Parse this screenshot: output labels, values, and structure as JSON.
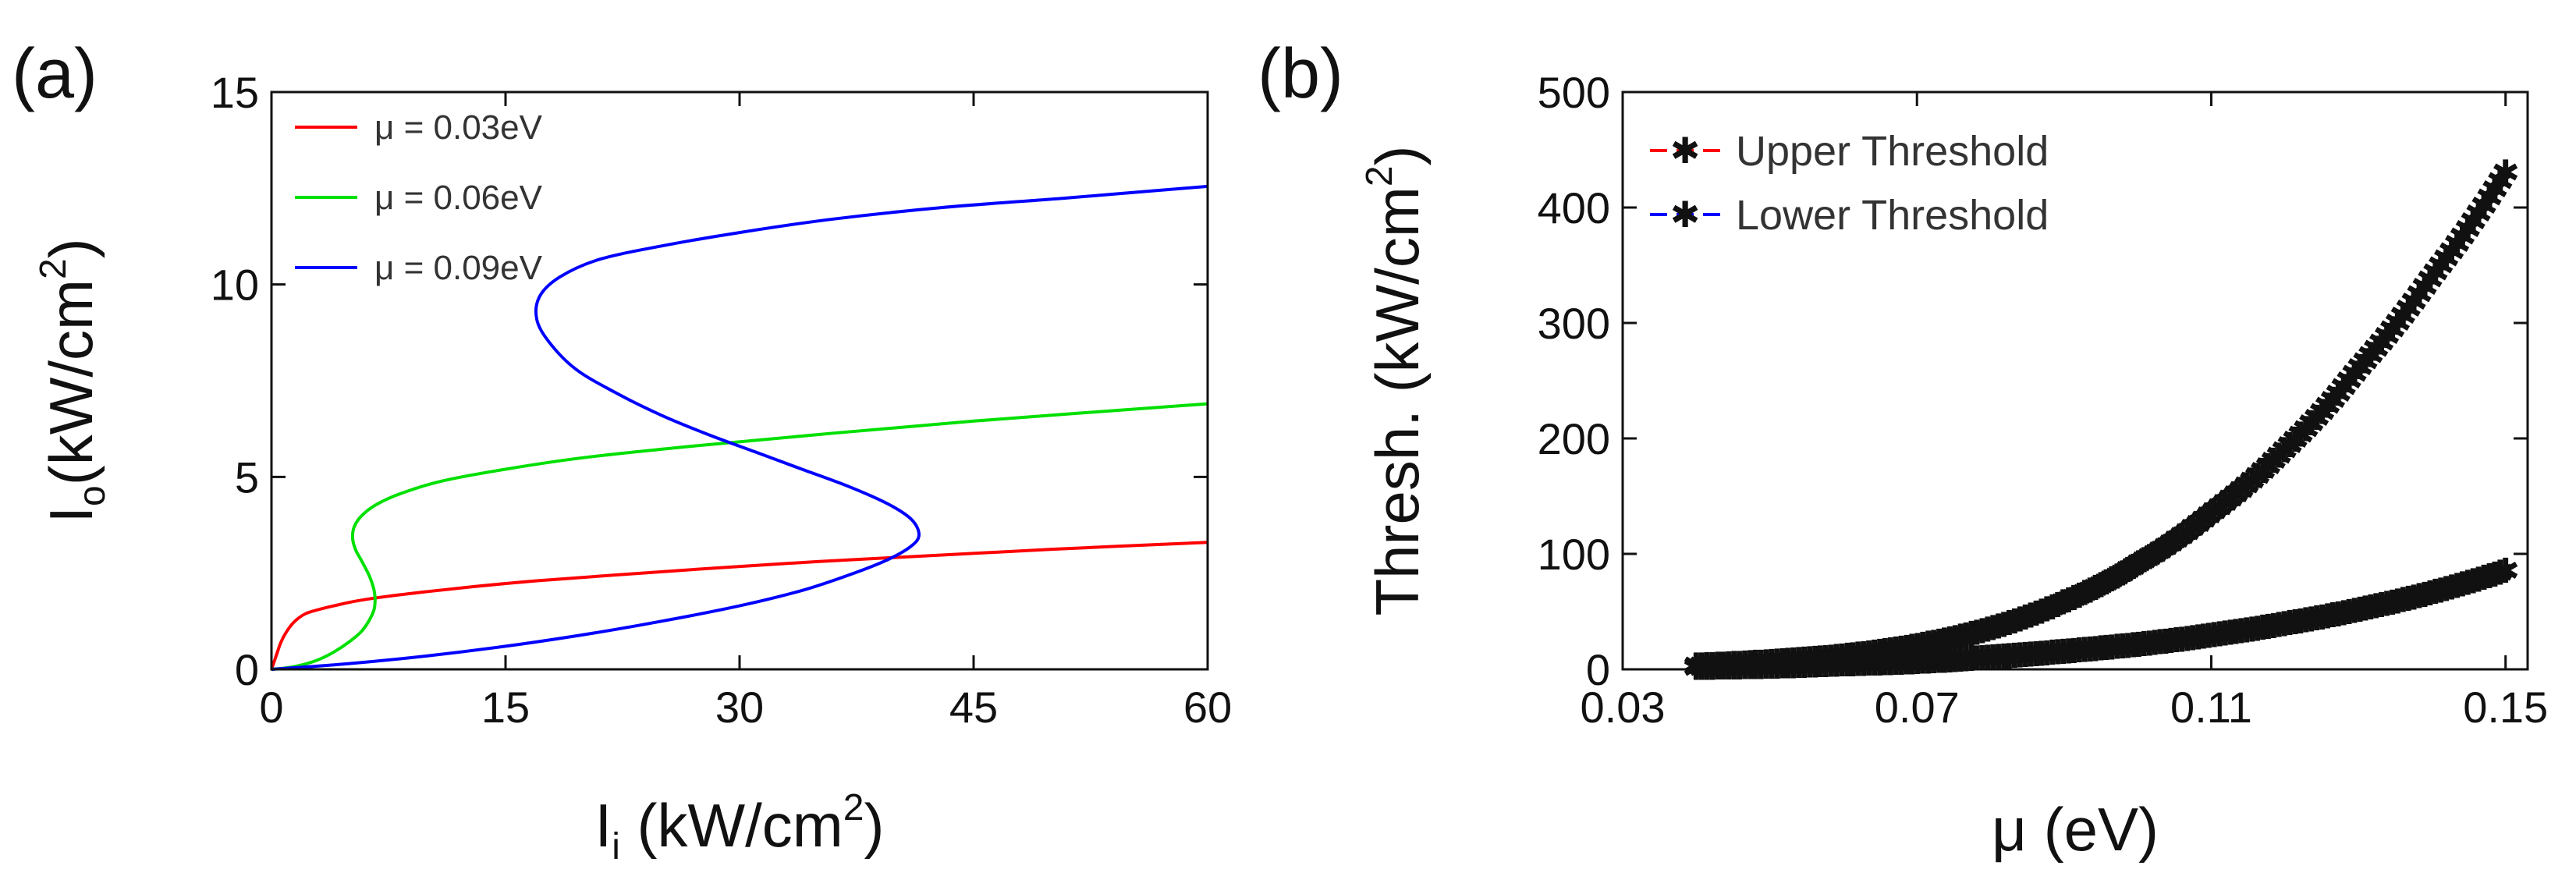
{
  "panels": [
    {
      "label": "(a)",
      "chart_data": {
        "type": "line",
        "title": "",
        "xlabel": {
          "main": "I",
          "sub": "i",
          "rest": " (kW/cm",
          "sup": "2",
          "close": ")"
        },
        "ylabel": {
          "main": "I",
          "sub": "o",
          "rest": "(kW/cm",
          "sup": "2",
          "close": ")"
        },
        "xlim": [
          0,
          60
        ],
        "ylim": [
          0,
          15
        ],
        "xticks": [
          "0",
          "15",
          "30",
          "45",
          "60"
        ],
        "yticks": [
          "0",
          "5",
          "10",
          "15"
        ],
        "grid": false,
        "legend_position": "top-left",
        "series": [
          {
            "name": "μ = 0.03eV",
            "color": "#ff0000",
            "x": [
              0.0,
              0.3,
              0.6,
              1.0,
              1.5,
              2.2,
              3.0,
              4.0,
              5.5,
              7.5,
              10,
              13,
              17,
              22,
              28,
              35,
              42,
              50,
              60
            ],
            "y": [
              0.0,
              0.35,
              0.7,
              1.0,
              1.25,
              1.45,
              1.55,
              1.65,
              1.78,
              1.9,
              2.02,
              2.15,
              2.3,
              2.45,
              2.62,
              2.8,
              2.95,
              3.12,
              3.3
            ]
          },
          {
            "name": "μ = 0.06eV",
            "color": "#00e000",
            "x": [
              0.0,
              1.0,
              2.0,
              3.0,
              4.0,
              5.0,
              5.8,
              6.3,
              6.6,
              6.6,
              6.3,
              5.8,
              5.4,
              5.2,
              5.3,
              5.8,
              6.8,
              8.5,
              11,
              15,
              20,
              27,
              35,
              45,
              60
            ],
            "y": [
              0.0,
              0.04,
              0.12,
              0.25,
              0.45,
              0.72,
              1.0,
              1.3,
              1.6,
              2.0,
              2.4,
              2.8,
              3.1,
              3.4,
              3.7,
              4.0,
              4.3,
              4.6,
              4.9,
              5.2,
              5.5,
              5.8,
              6.1,
              6.45,
              6.9
            ]
          },
          {
            "name": "μ = 0.09eV",
            "color": "#0000ff",
            "x": [
              0.0,
              5,
              10,
              15,
              20,
              25,
              30,
              34,
              37,
              39.5,
              41,
              41.5,
              41,
              39.5,
              37,
              34,
              31,
              28,
              25,
              22,
              19.5,
              17.8,
              17,
              17.2,
              18.5,
              21,
              25,
              30,
              36,
              43,
              51,
              60
            ],
            "y": [
              0.0,
              0.15,
              0.35,
              0.6,
              0.9,
              1.25,
              1.65,
              2.05,
              2.45,
              2.85,
              3.2,
              3.5,
              3.9,
              4.3,
              4.75,
              5.2,
              5.65,
              6.1,
              6.6,
              7.2,
              7.8,
              8.5,
              9.1,
              9.7,
              10.2,
              10.65,
              11.0,
              11.35,
              11.7,
              12.0,
              12.25,
              12.55
            ]
          }
        ]
      }
    },
    {
      "label": "(b)",
      "chart_data": {
        "type": "line",
        "title": "",
        "xlabel": {
          "text": "μ (eV)"
        },
        "ylabel": {
          "pre": "Thresh. (kW/cm",
          "sup": "2",
          "close": ")"
        },
        "xlim": [
          0.03,
          0.153
        ],
        "ylim": [
          0,
          500
        ],
        "xticks": [
          "0.03",
          "0.07",
          "0.11",
          "0.15"
        ],
        "yticks": [
          "0",
          "100",
          "200",
          "300",
          "400",
          "500"
        ],
        "grid": false,
        "legend_position": "top-left",
        "marker": "*",
        "series": [
          {
            "name": "Upper Threshold",
            "color": "#ff0000",
            "x": [
              0.04,
              0.05,
              0.06,
              0.07,
              0.08,
              0.09,
              0.1,
              0.11,
              0.12,
              0.13,
              0.14,
              0.15
            ],
            "y": [
              3,
              6,
              11,
              20,
              35,
              58,
              91,
              135,
              190,
              260,
              340,
              430
            ]
          },
          {
            "name": "Lower Threshold",
            "color": "#0000ff",
            "x": [
              0.04,
              0.05,
              0.06,
              0.07,
              0.08,
              0.09,
              0.1,
              0.11,
              0.12,
              0.13,
              0.14,
              0.15
            ],
            "y": [
              1,
              2,
              4,
              6,
              10,
              15,
              21,
              29,
              39,
              51,
              66,
              85
            ]
          }
        ]
      }
    }
  ]
}
